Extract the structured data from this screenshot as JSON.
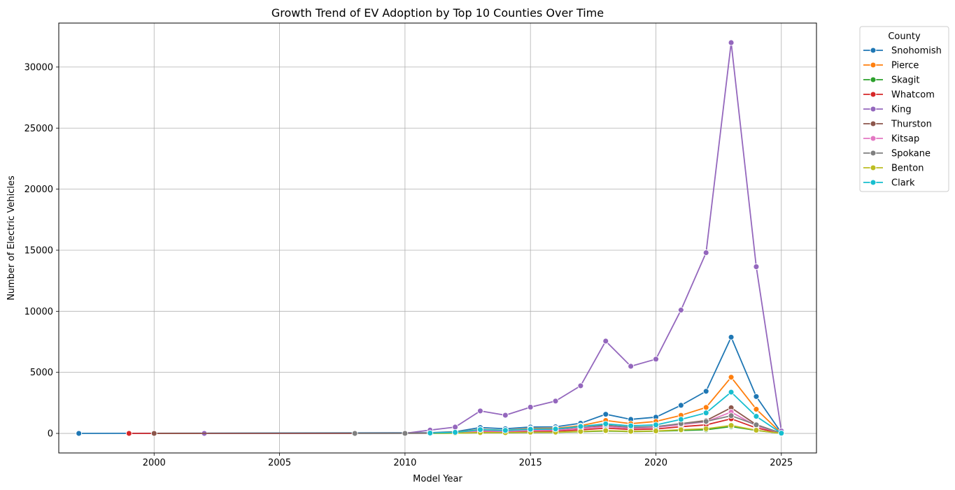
{
  "chart_data": {
    "type": "line",
    "title": "Growth Trend of EV Adoption by Top 10 Counties Over Time",
    "xlabel": "Model Year",
    "ylabel": "Number of Electric Vehicles",
    "xlim": [
      1996.2,
      2026.4
    ],
    "ylim": [
      -1600,
      33600
    ],
    "xticks": [
      2000,
      2005,
      2010,
      2015,
      2020,
      2025
    ],
    "yticks": [
      0,
      5000,
      10000,
      15000,
      20000,
      25000,
      30000
    ],
    "grid": true,
    "legend": {
      "title": "County",
      "placement": "outside-right-top"
    },
    "series": [
      {
        "name": "Snohomish",
        "color": "#1f77b4",
        "points": [
          [
            1997,
            1
          ],
          [
            2011,
            60
          ],
          [
            2012,
            140
          ],
          [
            2013,
            480
          ],
          [
            2014,
            380
          ],
          [
            2015,
            520
          ],
          [
            2016,
            540
          ],
          [
            2017,
            830
          ],
          [
            2018,
            1570
          ],
          [
            2019,
            1150
          ],
          [
            2020,
            1330
          ],
          [
            2021,
            2300
          ],
          [
            2022,
            3450
          ],
          [
            2023,
            7880
          ],
          [
            2024,
            3020
          ],
          [
            2025,
            50
          ]
        ]
      },
      {
        "name": "Pierce",
        "color": "#ff7f0e",
        "points": [
          [
            2011,
            40
          ],
          [
            2012,
            100
          ],
          [
            2013,
            330
          ],
          [
            2014,
            260
          ],
          [
            2015,
            400
          ],
          [
            2016,
            420
          ],
          [
            2017,
            630
          ],
          [
            2018,
            1060
          ],
          [
            2019,
            800
          ],
          [
            2020,
            980
          ],
          [
            2021,
            1480
          ],
          [
            2022,
            2130
          ],
          [
            2023,
            4600
          ],
          [
            2024,
            1980
          ],
          [
            2025,
            30
          ]
        ]
      },
      {
        "name": "Skagit",
        "color": "#2ca02c",
        "points": [
          [
            2011,
            5
          ],
          [
            2012,
            15
          ],
          [
            2013,
            60
          ],
          [
            2014,
            55
          ],
          [
            2015,
            80
          ],
          [
            2016,
            90
          ],
          [
            2017,
            140
          ],
          [
            2018,
            200
          ],
          [
            2019,
            150
          ],
          [
            2020,
            180
          ],
          [
            2021,
            240
          ],
          [
            2022,
            300
          ],
          [
            2023,
            560
          ],
          [
            2024,
            250
          ],
          [
            2025,
            5
          ]
        ]
      },
      {
        "name": "Whatcom",
        "color": "#d62728",
        "points": [
          [
            1999,
            1
          ],
          [
            2000,
            1
          ],
          [
            2011,
            15
          ],
          [
            2012,
            40
          ],
          [
            2013,
            150
          ],
          [
            2014,
            120
          ],
          [
            2015,
            180
          ],
          [
            2016,
            190
          ],
          [
            2017,
            290
          ],
          [
            2018,
            430
          ],
          [
            2019,
            320
          ],
          [
            2020,
            360
          ],
          [
            2021,
            550
          ],
          [
            2022,
            700
          ],
          [
            2023,
            1200
          ],
          [
            2024,
            450
          ],
          [
            2025,
            10
          ]
        ]
      },
      {
        "name": "King",
        "color": "#9467bd",
        "points": [
          [
            2002,
            1
          ],
          [
            2010,
            8
          ],
          [
            2011,
            270
          ],
          [
            2012,
            520
          ],
          [
            2013,
            1840
          ],
          [
            2014,
            1490
          ],
          [
            2015,
            2150
          ],
          [
            2016,
            2650
          ],
          [
            2017,
            3900
          ],
          [
            2018,
            7560
          ],
          [
            2019,
            5500
          ],
          [
            2020,
            6080
          ],
          [
            2021,
            10100
          ],
          [
            2022,
            14800
          ],
          [
            2023,
            32000
          ],
          [
            2024,
            13650
          ],
          [
            2025,
            200
          ]
        ]
      },
      {
        "name": "Thurston",
        "color": "#8c564b",
        "points": [
          [
            2000,
            1
          ],
          [
            2011,
            20
          ],
          [
            2012,
            60
          ],
          [
            2013,
            220
          ],
          [
            2014,
            180
          ],
          [
            2015,
            260
          ],
          [
            2016,
            280
          ],
          [
            2017,
            430
          ],
          [
            2018,
            600
          ],
          [
            2019,
            450
          ],
          [
            2020,
            520
          ],
          [
            2021,
            800
          ],
          [
            2022,
            1050
          ],
          [
            2023,
            2100
          ],
          [
            2024,
            720
          ],
          [
            2025,
            15
          ]
        ]
      },
      {
        "name": "Kitsap",
        "color": "#e377c2",
        "points": [
          [
            2011,
            20
          ],
          [
            2012,
            55
          ],
          [
            2013,
            200
          ],
          [
            2014,
            170
          ],
          [
            2015,
            240
          ],
          [
            2016,
            260
          ],
          [
            2017,
            400
          ],
          [
            2018,
            560
          ],
          [
            2019,
            420
          ],
          [
            2020,
            490
          ],
          [
            2021,
            720
          ],
          [
            2022,
            950
          ],
          [
            2023,
            1750
          ],
          [
            2024,
            620
          ],
          [
            2025,
            15
          ]
        ]
      },
      {
        "name": "Spokane",
        "color": "#7f7f7f",
        "points": [
          [
            2008,
            1
          ],
          [
            2010,
            5
          ],
          [
            2011,
            25
          ],
          [
            2012,
            80
          ],
          [
            2013,
            300
          ],
          [
            2014,
            250
          ],
          [
            2015,
            350
          ],
          [
            2016,
            370
          ],
          [
            2017,
            560
          ],
          [
            2018,
            680
          ],
          [
            2019,
            500
          ],
          [
            2020,
            560
          ],
          [
            2021,
            800
          ],
          [
            2022,
            980
          ],
          [
            2023,
            1450
          ],
          [
            2024,
            700
          ],
          [
            2025,
            20
          ]
        ]
      },
      {
        "name": "Benton",
        "color": "#bcbd22",
        "points": [
          [
            2011,
            5
          ],
          [
            2012,
            20
          ],
          [
            2013,
            70
          ],
          [
            2014,
            60
          ],
          [
            2015,
            95
          ],
          [
            2016,
            100
          ],
          [
            2017,
            160
          ],
          [
            2018,
            230
          ],
          [
            2019,
            170
          ],
          [
            2020,
            200
          ],
          [
            2021,
            300
          ],
          [
            2022,
            380
          ],
          [
            2023,
            650
          ],
          [
            2024,
            260
          ],
          [
            2025,
            5
          ]
        ]
      },
      {
        "name": "Clark",
        "color": "#17becf",
        "points": [
          [
            2011,
            30
          ],
          [
            2012,
            90
          ],
          [
            2013,
            310
          ],
          [
            2014,
            250
          ],
          [
            2015,
            340
          ],
          [
            2016,
            360
          ],
          [
            2017,
            570
          ],
          [
            2018,
            780
          ],
          [
            2019,
            620
          ],
          [
            2020,
            700
          ],
          [
            2021,
            1150
          ],
          [
            2022,
            1680
          ],
          [
            2023,
            3380
          ],
          [
            2024,
            1400
          ],
          [
            2025,
            20
          ]
        ]
      }
    ]
  }
}
